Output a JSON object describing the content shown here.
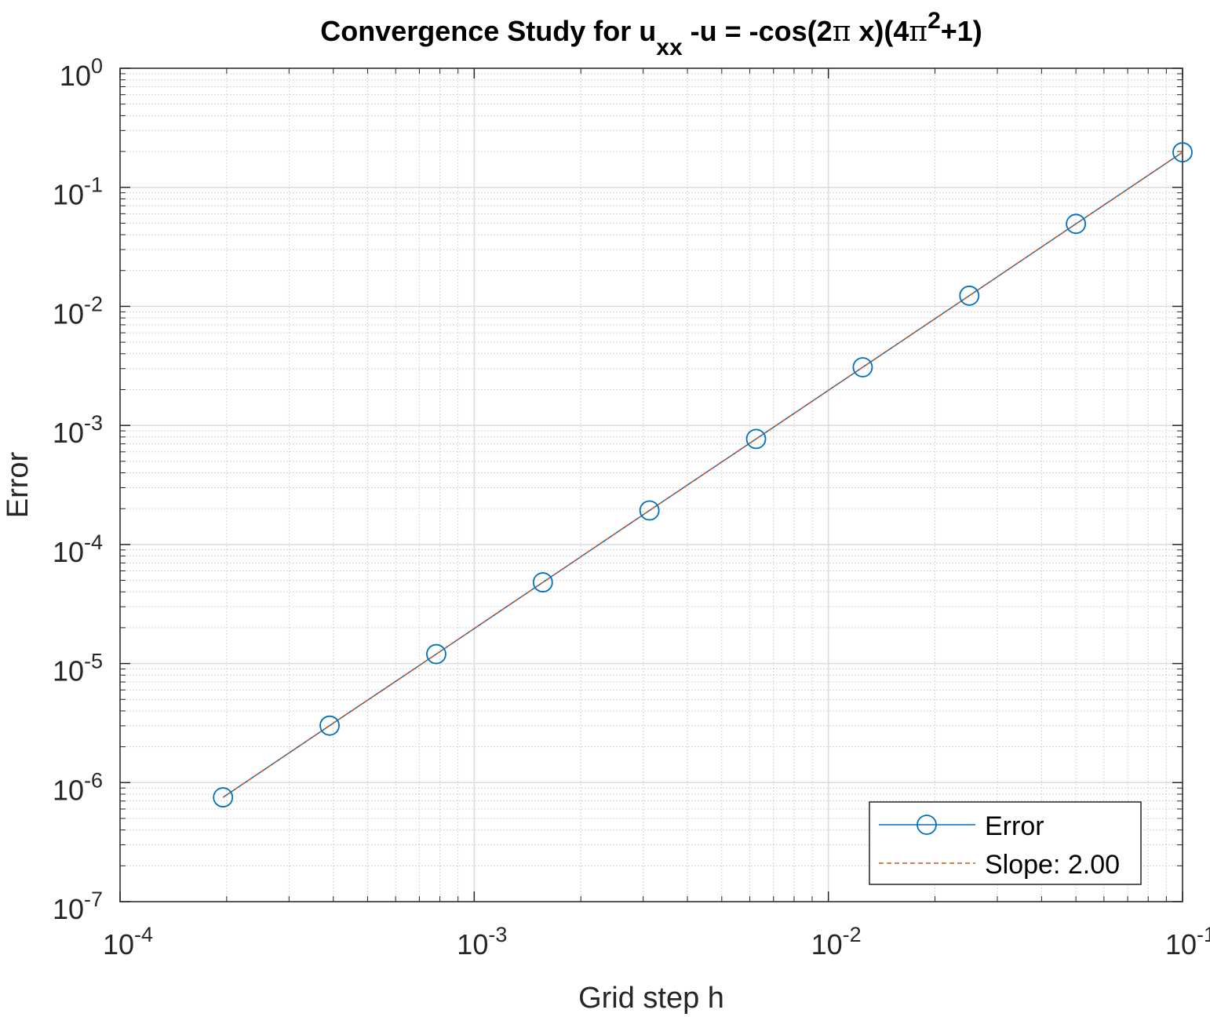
{
  "chart_data": {
    "type": "line",
    "title": "Convergence Study for u_xx -u = -cos(2π x)(4π^2+1)",
    "title_parts": {
      "t1": "Convergence Study for u",
      "sub": "xx",
      "t2": " -u = -cos(2",
      "pi1": "π",
      "t3": " x)(4",
      "pi2": "π",
      "sup": "2",
      "t4": "+1)"
    },
    "xlabel": "Grid step h",
    "ylabel": "Error",
    "xscale": "log",
    "yscale": "log",
    "xlim": [
      0.0001,
      0.1
    ],
    "ylim": [
      1e-07,
      1
    ],
    "grid": true,
    "minor_grid": true,
    "legend_position": "bottom-right",
    "x_ticks": [
      {
        "base": "10",
        "exp": "-4",
        "value": 0.0001
      },
      {
        "base": "10",
        "exp": "-3",
        "value": 0.001
      },
      {
        "base": "10",
        "exp": "-2",
        "value": 0.01
      },
      {
        "base": "10",
        "exp": "-1",
        "value": 0.1
      }
    ],
    "y_ticks": [
      {
        "base": "10",
        "exp": "-7",
        "value": 1e-07
      },
      {
        "base": "10",
        "exp": "-6",
        "value": 1e-06
      },
      {
        "base": "10",
        "exp": "-5",
        "value": 1e-05
      },
      {
        "base": "10",
        "exp": "-4",
        "value": 0.0001
      },
      {
        "base": "10",
        "exp": "-3",
        "value": 0.001
      },
      {
        "base": "10",
        "exp": "-2",
        "value": 0.01
      },
      {
        "base": "10",
        "exp": "-1",
        "value": 0.1
      },
      {
        "base": "10",
        "exp": "0",
        "value": 1
      }
    ],
    "x": [
      0.1,
      0.05,
      0.025,
      0.0125,
      0.00625,
      0.003125,
      0.0015625,
      0.00078125,
      0.000390625,
      0.0001953125
    ],
    "series": [
      {
        "name": "Error",
        "color": "#0072BD",
        "style": "solid",
        "marker": "circle",
        "values": [
          0.197,
          0.0493,
          0.0123,
          0.00308,
          0.00077,
          0.000193,
          4.81e-05,
          1.2e-05,
          3.01e-06,
          7.52e-07
        ]
      },
      {
        "name": "Slope: 2.00",
        "color": "#D95319",
        "style": "dashed",
        "marker": "none",
        "values": [
          0.197,
          0.0493,
          0.0123,
          0.00308,
          0.00077,
          0.000193,
          4.81e-05,
          1.2e-05,
          3.01e-06,
          7.52e-07
        ]
      }
    ]
  }
}
